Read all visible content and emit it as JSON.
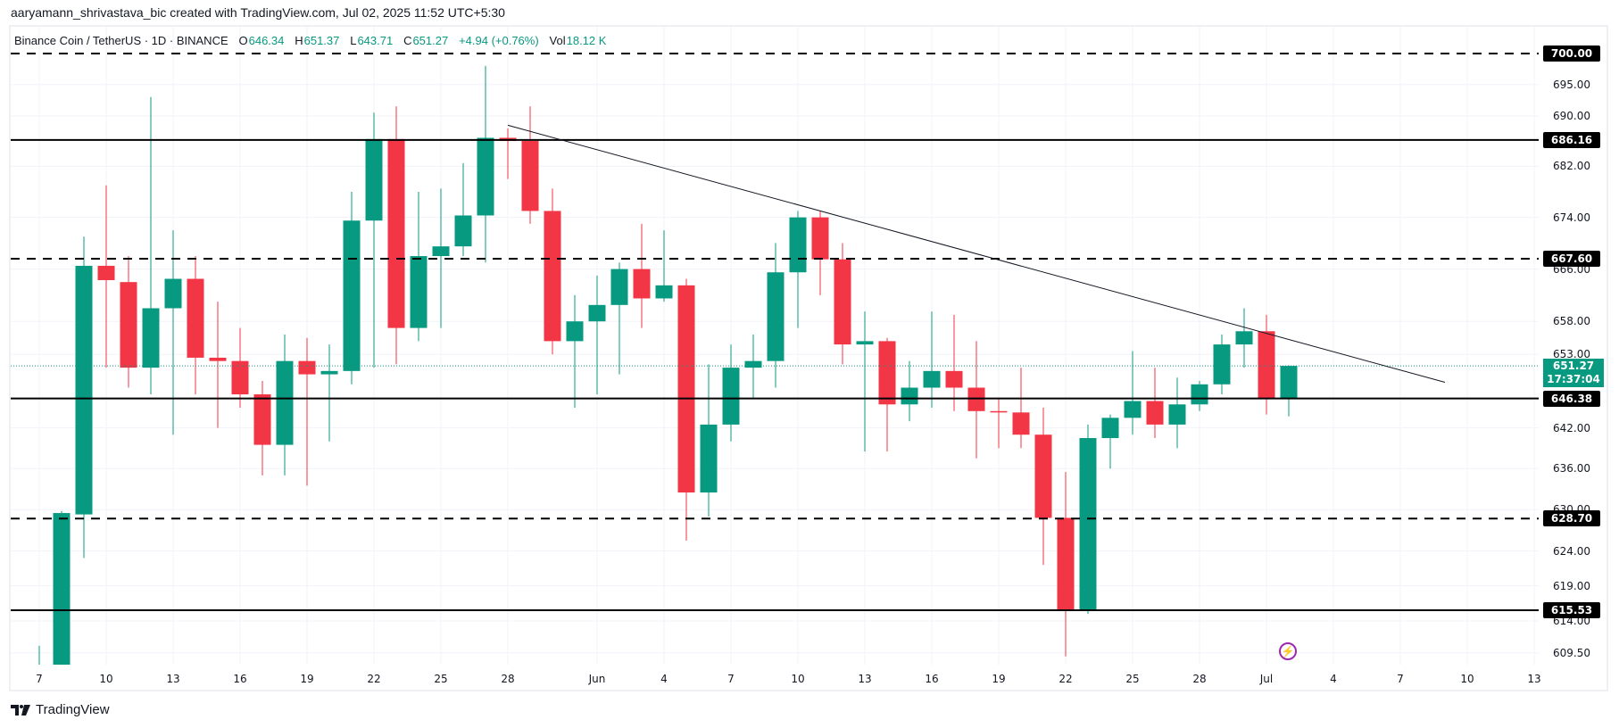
{
  "header": {
    "attribution": "aaryamann_shrivastava_bic created with TradingView.com, Jul 02, 2025 11:52 UTC+5:30"
  },
  "legend": {
    "symbol": "Binance Coin / TetherUS · 1D · BINANCE",
    "o_label": "O",
    "o": "646.34",
    "h_label": "H",
    "h": "651.37",
    "l_label": "L",
    "l": "643.71",
    "c_label": "C",
    "c": "651.27",
    "change": "+4.94 (+0.76%)",
    "vol_label": "Vol",
    "vol": "18.12 K"
  },
  "last_price": {
    "price": "651.27",
    "countdown": "17:37:04"
  },
  "event_icon": "lightning-icon",
  "branding": {
    "logo_text": "TradingView",
    "icon": "tradingview-logo-icon"
  },
  "colors": {
    "up": "#089981",
    "down": "#f23645",
    "level": "#000000",
    "event": "#9c27b0"
  },
  "chart_data": {
    "type": "candlestick",
    "title": "Binance Coin / TetherUS · 1D · BINANCE",
    "y_scale": "log",
    "ylim": [
      607.7,
      702.5
    ],
    "grid": true,
    "y_ticks": [
      "695.00",
      "690.00",
      "682.00",
      "674.00",
      "666.00",
      "658.00",
      "653.00",
      "642.00",
      "636.00",
      "630.00",
      "624.00",
      "619.00",
      "614.00",
      "609.50"
    ],
    "x_ticks": [
      {
        "label": "7",
        "date": "2025-05-07"
      },
      {
        "label": "10",
        "date": "2025-05-10"
      },
      {
        "label": "13",
        "date": "2025-05-13"
      },
      {
        "label": "16",
        "date": "2025-05-16"
      },
      {
        "label": "19",
        "date": "2025-05-19"
      },
      {
        "label": "22",
        "date": "2025-05-22"
      },
      {
        "label": "25",
        "date": "2025-05-25"
      },
      {
        "label": "28",
        "date": "2025-05-28"
      },
      {
        "label": "Jun",
        "date": "2025-06-01"
      },
      {
        "label": "4",
        "date": "2025-06-04"
      },
      {
        "label": "7",
        "date": "2025-06-07"
      },
      {
        "label": "10",
        "date": "2025-06-10"
      },
      {
        "label": "13",
        "date": "2025-06-13"
      },
      {
        "label": "16",
        "date": "2025-06-16"
      },
      {
        "label": "19",
        "date": "2025-06-19"
      },
      {
        "label": "22",
        "date": "2025-06-22"
      },
      {
        "label": "25",
        "date": "2025-06-25"
      },
      {
        "label": "28",
        "date": "2025-06-28"
      },
      {
        "label": "Jul",
        "date": "2025-07-01"
      },
      {
        "label": "4",
        "date": "2025-07-04"
      },
      {
        "label": "7",
        "date": "2025-07-07"
      },
      {
        "label": "10",
        "date": "2025-07-10"
      },
      {
        "label": "13",
        "date": "2025-07-13"
      }
    ],
    "columns": [
      "date",
      "open",
      "high",
      "low",
      "close"
    ],
    "candles": [
      [
        "2025-05-07",
        603,
        610.5,
        600,
        606
      ],
      [
        "2025-05-08",
        600,
        629.8,
        596,
        629.5
      ],
      [
        "2025-05-09",
        629.3,
        671,
        623,
        666.5
      ],
      [
        "2025-05-10",
        666.5,
        679,
        651,
        664.3
      ],
      [
        "2025-05-11",
        664,
        668,
        648,
        651
      ],
      [
        "2025-05-12",
        651,
        693,
        647,
        660
      ],
      [
        "2025-05-13",
        660,
        672,
        641,
        664.5
      ],
      [
        "2025-05-14",
        664.5,
        668,
        647,
        652.5
      ],
      [
        "2025-05-15",
        652.5,
        661,
        642,
        652
      ],
      [
        "2025-05-16",
        652,
        657,
        645,
        647
      ],
      [
        "2025-05-17",
        647,
        649,
        635,
        639.5
      ],
      [
        "2025-05-18",
        639.5,
        656,
        635,
        652
      ],
      [
        "2025-05-19",
        652,
        655.5,
        633.5,
        650
      ],
      [
        "2025-05-20",
        650,
        654.5,
        640,
        650.5
      ],
      [
        "2025-05-21",
        650.5,
        678,
        648.5,
        673.5
      ],
      [
        "2025-05-22",
        673.5,
        690.5,
        651,
        686.3
      ],
      [
        "2025-05-23",
        686.3,
        691.5,
        651.5,
        657
      ],
      [
        "2025-05-24",
        657,
        678,
        655,
        668
      ],
      [
        "2025-05-25",
        668,
        678.5,
        657,
        669.5
      ],
      [
        "2025-05-26",
        669.5,
        682.5,
        668,
        674.3
      ],
      [
        "2025-05-27",
        674.3,
        698,
        667,
        686.5
      ],
      [
        "2025-05-28",
        686.5,
        688,
        680,
        686
      ],
      [
        "2025-05-29",
        686,
        691.5,
        673,
        675
      ],
      [
        "2025-05-30",
        675,
        678.5,
        653,
        655
      ],
      [
        "2025-05-31",
        655,
        662,
        645,
        658
      ],
      [
        "2025-06-01",
        658,
        665,
        647,
        660.5
      ],
      [
        "2025-06-02",
        660.5,
        667,
        650,
        666
      ],
      [
        "2025-06-03",
        666,
        673,
        657,
        661.5
      ],
      [
        "2025-06-04",
        661.5,
        672,
        661,
        663.5
      ],
      [
        "2025-06-05",
        663.5,
        664.5,
        625.5,
        632.5
      ],
      [
        "2025-06-06",
        632.5,
        651.5,
        629,
        642.5
      ],
      [
        "2025-06-07",
        642.5,
        654.5,
        640,
        651
      ],
      [
        "2025-06-08",
        651,
        656,
        646.5,
        652
      ],
      [
        "2025-06-09",
        652,
        670,
        648,
        665.5
      ],
      [
        "2025-06-10",
        665.5,
        675,
        657,
        674
      ],
      [
        "2025-06-11",
        674,
        675,
        662,
        667.5
      ],
      [
        "2025-06-12",
        667.5,
        670,
        651.5,
        654.5
      ],
      [
        "2025-06-13",
        654.5,
        659.5,
        638.5,
        655
      ],
      [
        "2025-06-14",
        655,
        655.5,
        638.5,
        645.5
      ],
      [
        "2025-06-15",
        645.5,
        652,
        643,
        648
      ],
      [
        "2025-06-16",
        648,
        659.5,
        645,
        650.5
      ],
      [
        "2025-06-17",
        650.5,
        659,
        644.5,
        648
      ],
      [
        "2025-06-18",
        648,
        655,
        637.5,
        644.5
      ],
      [
        "2025-06-19",
        644.5,
        646.5,
        639,
        644.3
      ],
      [
        "2025-06-20",
        644.3,
        651,
        639,
        641
      ],
      [
        "2025-06-21",
        641,
        645,
        622,
        628.8
      ],
      [
        "2025-06-22",
        628.8,
        635.5,
        609,
        615.5
      ],
      [
        "2025-06-23",
        615.5,
        642.5,
        615,
        640.5
      ],
      [
        "2025-06-24",
        640.5,
        644,
        636,
        643.5
      ],
      [
        "2025-06-25",
        643.5,
        653.5,
        641,
        646
      ],
      [
        "2025-06-26",
        646,
        651,
        640.5,
        642.5
      ],
      [
        "2025-06-27",
        642.5,
        649.5,
        639,
        645.5
      ],
      [
        "2025-06-28",
        645.5,
        649,
        644.5,
        648.5
      ],
      [
        "2025-06-29",
        648.5,
        656,
        647,
        654.5
      ],
      [
        "2025-06-30",
        654.5,
        660,
        651,
        656.5
      ],
      [
        "2025-07-01",
        656.5,
        659,
        644,
        646.3
      ],
      [
        "2025-07-02",
        646.34,
        651.37,
        643.71,
        651.27
      ]
    ],
    "horizontal_levels": [
      {
        "price": 700.0,
        "label": "700.00",
        "style": "dashed"
      },
      {
        "price": 686.16,
        "label": "686.16",
        "style": "solid"
      },
      {
        "price": 667.6,
        "label": "667.60",
        "style": "dashed"
      },
      {
        "price": 646.38,
        "label": "646.38",
        "style": "solid"
      },
      {
        "price": 628.7,
        "label": "628.70",
        "style": "dashed"
      },
      {
        "price": 615.53,
        "label": "615.53",
        "style": "solid"
      }
    ],
    "trendline": {
      "from": {
        "date": "2025-05-28",
        "price": 688.5
      },
      "to": {
        "date": "2025-07-09",
        "price": 648.8
      }
    },
    "last_price_line": 651.27
  }
}
